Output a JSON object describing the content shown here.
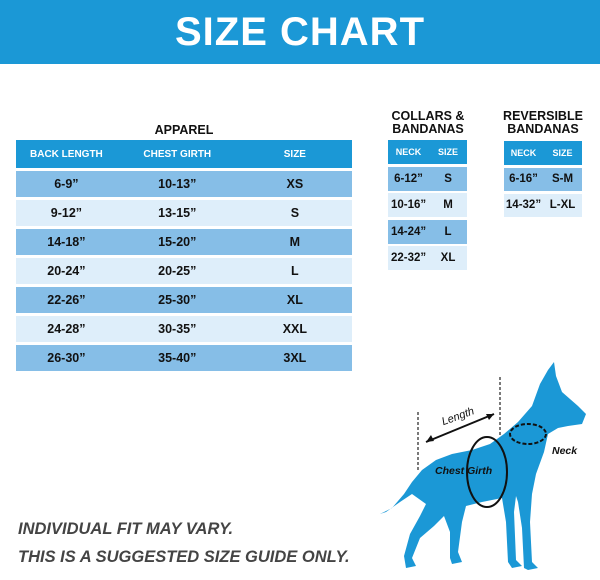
{
  "title": "SIZE CHART",
  "apparel": {
    "title": "APPAREL",
    "headers": [
      "BACK LENGTH",
      "CHEST GIRTH",
      "SIZE"
    ],
    "rows": [
      [
        "6-9”",
        "10-13”",
        "XS"
      ],
      [
        "9-12”",
        "13-15”",
        "S"
      ],
      [
        "14-18”",
        "15-20”",
        "M"
      ],
      [
        "20-24”",
        "20-25”",
        "L"
      ],
      [
        "22-26”",
        "25-30”",
        "XL"
      ],
      [
        "24-28”",
        "30-35”",
        "XXL"
      ],
      [
        "26-30”",
        "35-40”",
        "3XL"
      ]
    ]
  },
  "collars": {
    "title_line1": "COLLARS &",
    "title_line2": "BANDANAS",
    "headers": [
      "NECK",
      "SIZE"
    ],
    "rows": [
      [
        "6-12”",
        "S"
      ],
      [
        "10-16”",
        "M"
      ],
      [
        "14-24”",
        "L"
      ],
      [
        "22-32”",
        "XL"
      ]
    ]
  },
  "reversible": {
    "title_line1": "REVERSIBLE",
    "title_line2": "BANDANAS",
    "headers": [
      "NECK",
      "SIZE"
    ],
    "rows": [
      [
        "6-16”",
        "S-M"
      ],
      [
        "14-32”",
        "L-XL"
      ]
    ]
  },
  "diagram": {
    "length_label": "Length",
    "neck_label": "Neck",
    "chest_label": "Chest Girth"
  },
  "footer": {
    "line1": "INDIVIDUAL FIT MAY VARY.",
    "line2": "THIS IS A SUGGESTED SIZE GUIDE ONLY."
  },
  "colors": {
    "brand_blue": "#1b98d6",
    "row_dark": "#86bee7",
    "row_light": "#deeefa"
  }
}
